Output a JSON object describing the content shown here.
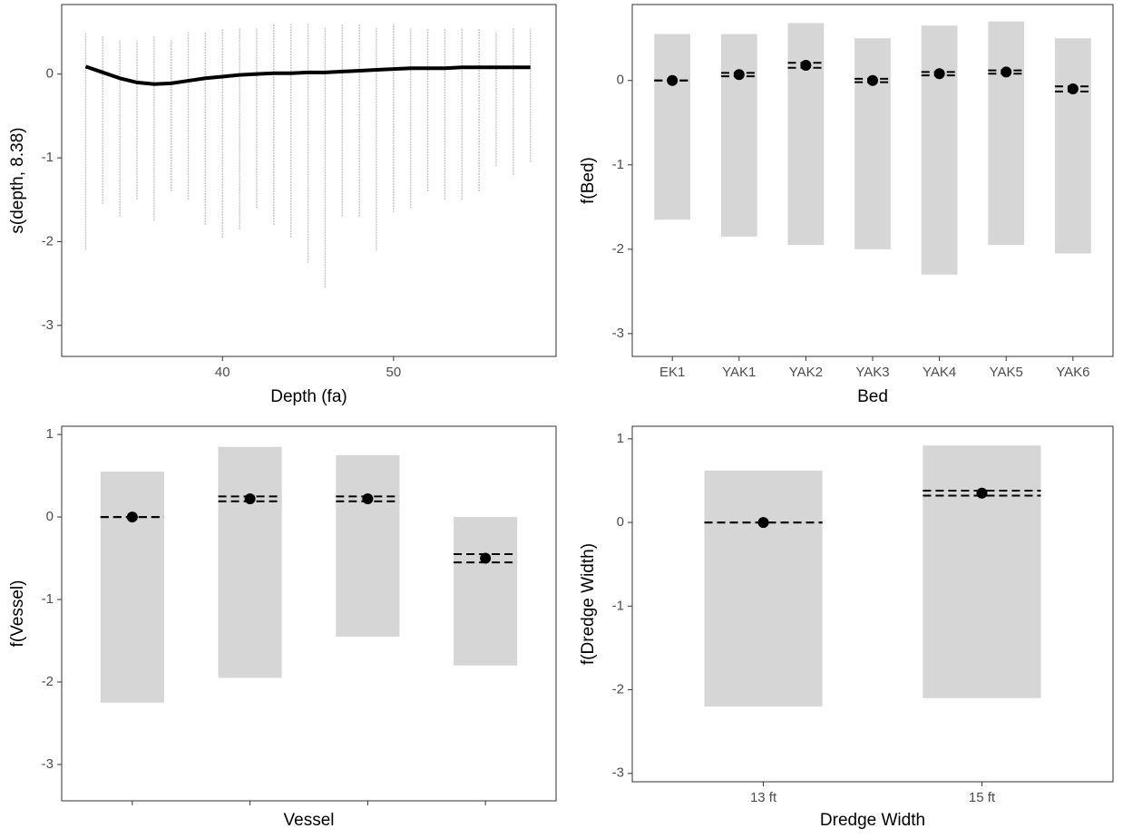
{
  "chart_data": [
    {
      "type": "line",
      "x_label": "Depth (fa)",
      "y_label": "s(depth, 8.38)",
      "x": [
        32,
        33,
        34,
        35,
        36,
        37,
        38,
        39,
        40,
        41,
        42,
        43,
        44,
        45,
        46,
        47,
        48,
        49,
        50,
        51,
        52,
        53,
        54,
        55,
        56,
        57,
        58
      ],
      "series": [
        {
          "color": "#000000",
          "values": [
            0.09,
            0.02,
            -0.05,
            -0.1,
            -0.12,
            -0.11,
            -0.08,
            -0.05,
            -0.03,
            -0.01,
            0.0,
            0.01,
            0.01,
            0.02,
            0.02,
            0.03,
            0.04,
            0.05,
            0.06,
            0.07,
            0.07,
            0.07,
            0.08,
            0.08,
            0.08,
            0.08,
            0.08
          ]
        }
      ],
      "residuals": {
        "color": "#c8c8c8",
        "low": [
          -2.1,
          -1.55,
          -1.7,
          -1.5,
          -1.75,
          -1.4,
          -1.5,
          -1.8,
          -1.95,
          -1.85,
          -1.6,
          -1.8,
          -1.95,
          -2.25,
          -2.55,
          -1.7,
          -1.7,
          -2.1,
          -1.65,
          -1.6,
          -1.4,
          -1.5,
          -1.5,
          -1.4,
          -1.1,
          -1.2,
          -1.05
        ],
        "high": [
          0.5,
          0.45,
          0.4,
          0.4,
          0.45,
          0.4,
          0.5,
          0.5,
          0.55,
          0.55,
          0.55,
          0.6,
          0.6,
          0.6,
          0.55,
          0.6,
          0.6,
          0.55,
          0.6,
          0.55,
          0.55,
          0.55,
          0.55,
          0.55,
          0.5,
          0.55,
          0.55
        ]
      },
      "xlim": [
        30.6,
        59.5
      ],
      "xticks": [
        40,
        50
      ],
      "ylim": [
        -3.37,
        0.83
      ],
      "yticks": [
        -3,
        -2,
        -1,
        0
      ]
    },
    {
      "type": "dot",
      "x_label": "Bed",
      "y_label": "f(Bed)",
      "color": "#000000",
      "categories": [
        "EK1",
        "YAK1",
        "YAK2",
        "YAK3",
        "YAK4",
        "YAK5",
        "YAK6"
      ],
      "values": [
        0.0,
        0.07,
        0.18,
        0.0,
        0.08,
        0.1,
        -0.1
      ],
      "lower": [
        0.0,
        0.05,
        0.15,
        -0.02,
        0.06,
        0.08,
        -0.13
      ],
      "upper": [
        0.0,
        0.09,
        0.21,
        0.02,
        0.1,
        0.12,
        -0.07
      ],
      "residuals": {
        "color": "#c8c8c8",
        "low": [
          -1.65,
          -1.85,
          -1.95,
          -2.0,
          -2.3,
          -1.95,
          -2.05
        ],
        "high": [
          0.55,
          0.55,
          0.68,
          0.5,
          0.65,
          0.7,
          0.5
        ]
      },
      "ylim": [
        -3.27,
        0.9
      ],
      "yticks": [
        -3,
        -2,
        -1,
        0
      ]
    },
    {
      "type": "dot",
      "x_label": "Vessel",
      "y_label": "f(Vessel)",
      "color": "#000000",
      "categories": [
        null,
        null,
        null,
        null
      ],
      "values": [
        0.0,
        0.22,
        0.22,
        -0.5
      ],
      "lower": [
        0.0,
        0.19,
        0.19,
        -0.55
      ],
      "upper": [
        0.0,
        0.25,
        0.25,
        -0.45
      ],
      "residuals": {
        "color": "#c8c8c8",
        "low": [
          -2.25,
          -1.95,
          -1.45,
          -1.8
        ],
        "high": [
          0.55,
          0.85,
          0.75,
          0.0
        ]
      },
      "ylim": [
        -3.44,
        1.1
      ],
      "yticks": [
        -3,
        -2,
        -1,
        0,
        1
      ]
    },
    {
      "type": "dot",
      "x_label": "Dredge Width",
      "y_label": "f(Dredge Width)",
      "color": "#000000",
      "categories": [
        "13 ft",
        "15 ft"
      ],
      "values": [
        0.0,
        0.35
      ],
      "lower": [
        0.0,
        0.32
      ],
      "upper": [
        0.0,
        0.38
      ],
      "residuals": {
        "color": "#c8c8c8",
        "low": [
          -2.2,
          -2.1
        ],
        "high": [
          0.62,
          0.92
        ]
      },
      "ylim": [
        -3.1,
        1.15
      ],
      "yticks": [
        -3,
        -2,
        -1,
        0,
        1
      ]
    }
  ]
}
